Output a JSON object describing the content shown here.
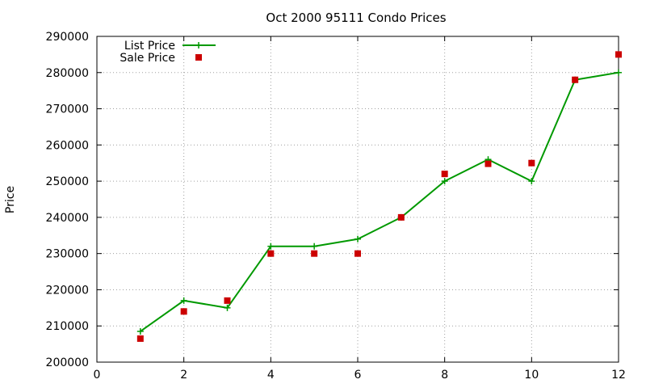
{
  "chart_data": {
    "type": "line",
    "title": "Oct 2000 95111 Condo Prices",
    "xlabel": "",
    "ylabel": "Price",
    "xlim": [
      0,
      12
    ],
    "ylim": [
      200000,
      290000
    ],
    "x_ticks": [
      0,
      2,
      4,
      6,
      8,
      10,
      12
    ],
    "y_ticks": [
      200000,
      210000,
      220000,
      230000,
      240000,
      250000,
      260000,
      270000,
      280000,
      290000
    ],
    "grid": true,
    "legend_position": "top-left",
    "series": [
      {
        "name": "List Price",
        "style": "line-plus",
        "color": "#009900",
        "x": [
          1,
          2,
          3,
          4,
          5,
          6,
          7,
          8,
          9,
          10,
          11,
          12
        ],
        "y": [
          208500,
          217000,
          215000,
          232000,
          232000,
          234000,
          240000,
          250000,
          256000,
          250000,
          278000,
          280000
        ]
      },
      {
        "name": "Sale Price",
        "style": "square-points",
        "color": "#cc0000",
        "x": [
          1,
          2,
          3,
          4,
          5,
          6,
          7,
          8,
          9,
          10,
          11,
          12
        ],
        "y": [
          206500,
          214000,
          217000,
          230000,
          230000,
          230000,
          240000,
          252000,
          254800,
          255000,
          278000,
          285000
        ]
      }
    ]
  }
}
